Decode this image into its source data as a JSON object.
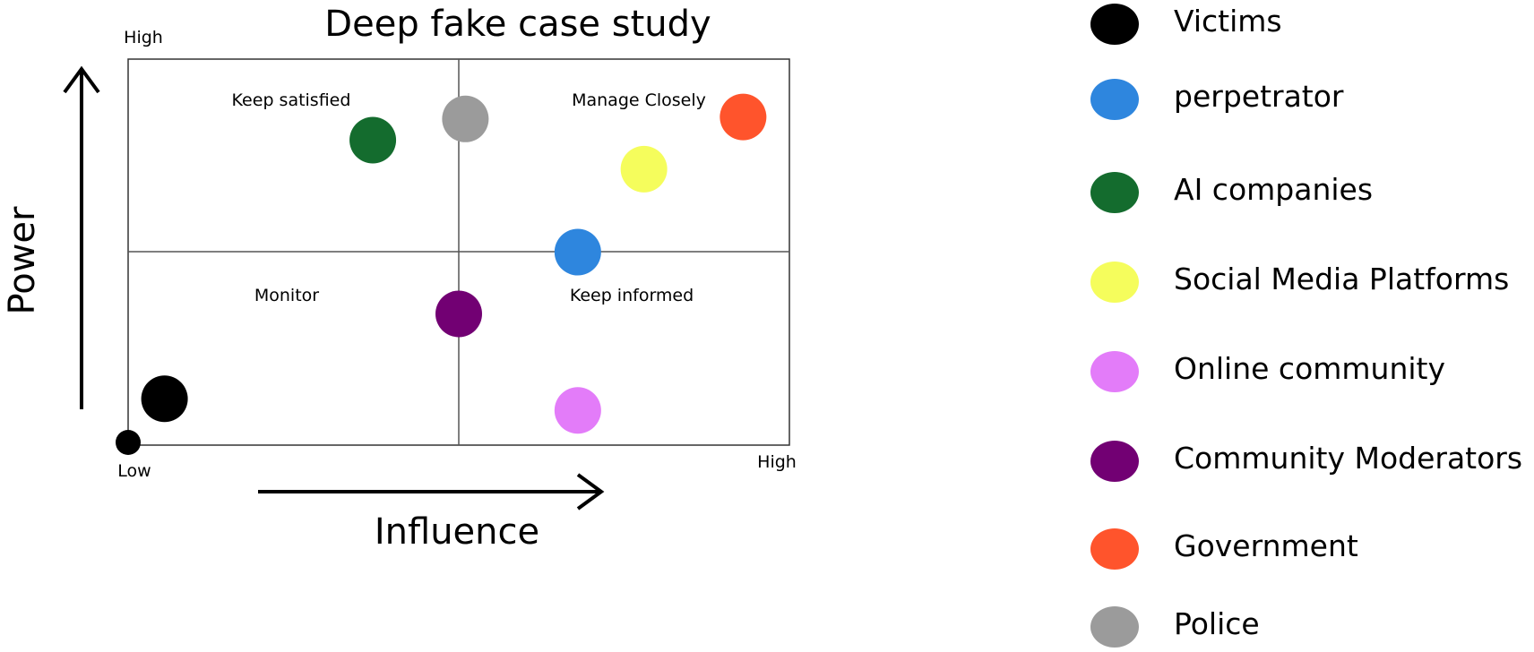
{
  "chart_data": {
    "type": "scatter",
    "title": "Deep fake case study",
    "xlabel": "Influence",
    "ylabel": "Power",
    "xlim": [
      0,
      10
    ],
    "ylim": [
      0,
      10
    ],
    "x_tick_labels": {
      "low": "Low",
      "high": "High"
    },
    "y_tick_labels": {
      "high": "High"
    },
    "quadrants": {
      "top_left": "Keep satisfied",
      "top_right": "Manage Closely",
      "bottom_left": "Monitor",
      "bottom_right": "Keep informed"
    },
    "legend_position": "right",
    "series": [
      {
        "name": "Victims",
        "color": "#000000",
        "x": 0.55,
        "y": 1.2
      },
      {
        "name": "perpetrator",
        "color": "#2e86de",
        "x": 6.8,
        "y": 5.0
      },
      {
        "name": "AI companies",
        "color": "#146c2e",
        "x": 3.7,
        "y": 7.9
      },
      {
        "name": "Social Media Platforms",
        "color": "#f5fd5c",
        "x": 7.8,
        "y": 7.15
      },
      {
        "name": "Online community",
        "color": "#e37cf9",
        "x": 6.8,
        "y": 0.9
      },
      {
        "name": "Community Moderators",
        "color": "#720073",
        "x": 5.0,
        "y": 3.4
      },
      {
        "name": "Government",
        "color": "#ff542c",
        "x": 9.3,
        "y": 8.5
      },
      {
        "name": "Police",
        "color": "#9b9b9b",
        "x": 5.1,
        "y": 8.45
      }
    ]
  }
}
